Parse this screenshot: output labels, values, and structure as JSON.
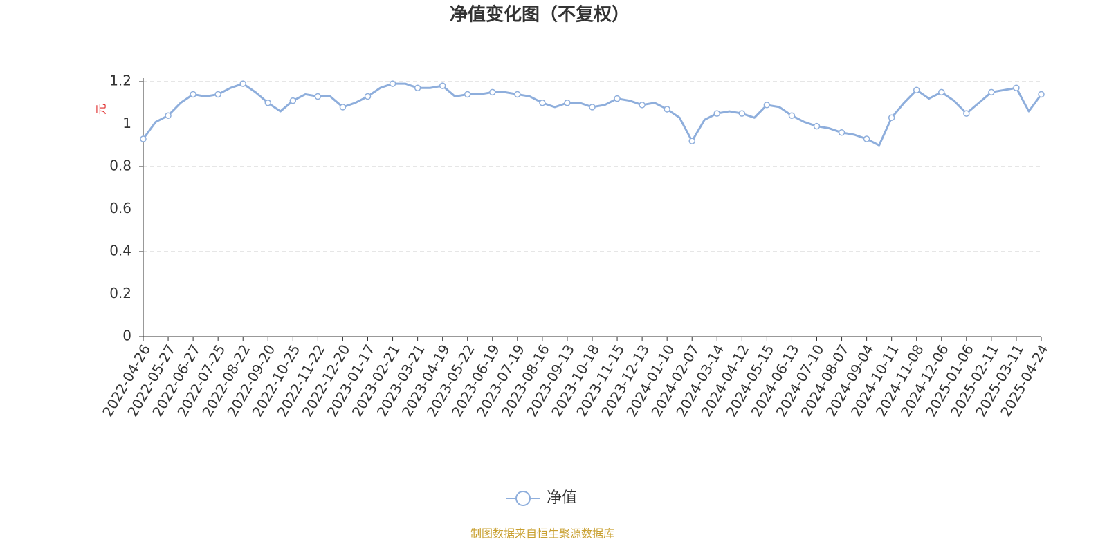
{
  "chart_data": {
    "type": "line",
    "title": "净值变化图（不复权）",
    "y_label": "元",
    "source": "制图数据来自恒生聚源数据库",
    "categories": [
      "2022-04-26",
      null,
      "2022-05-27",
      null,
      "2022-06-27",
      null,
      "2022-07-25",
      null,
      "2022-08-22",
      null,
      "2022-09-20",
      null,
      "2022-10-25",
      null,
      "2022-11-22",
      null,
      "2022-12-20",
      null,
      "2023-01-17",
      null,
      "2023-02-21",
      null,
      "2023-03-21",
      null,
      "2023-04-19",
      null,
      "2023-05-22",
      null,
      "2023-06-19",
      null,
      "2023-07-19",
      null,
      "2023-08-16",
      null,
      "2023-09-13",
      null,
      "2023-10-18",
      null,
      "2023-11-15",
      null,
      "2023-12-13",
      null,
      "2024-01-10",
      null,
      "2024-02-07",
      null,
      "2024-03-14",
      null,
      "2024-04-12",
      null,
      "2024-05-15",
      null,
      "2024-06-13",
      null,
      "2024-07-10",
      null,
      "2024-08-07",
      null,
      "2024-09-04",
      null,
      "2024-10-11",
      null,
      "2024-11-08",
      null,
      "2024-12-06",
      null,
      "2025-01-06",
      null,
      "2025-02-11",
      null,
      "2025-03-11",
      null,
      "2025-04-24"
    ],
    "series": [
      {
        "name": "净值",
        "color": "#8eaedc",
        "values": [
          0.93,
          1.01,
          1.04,
          1.1,
          1.14,
          1.13,
          1.14,
          1.17,
          1.19,
          1.15,
          1.1,
          1.06,
          1.11,
          1.14,
          1.13,
          1.13,
          1.08,
          1.1,
          1.13,
          1.17,
          1.19,
          1.19,
          1.17,
          1.17,
          1.18,
          1.13,
          1.14,
          1.14,
          1.15,
          1.15,
          1.14,
          1.13,
          1.1,
          1.08,
          1.1,
          1.1,
          1.08,
          1.09,
          1.12,
          1.11,
          1.09,
          1.1,
          1.07,
          1.03,
          0.92,
          1.02,
          1.05,
          1.06,
          1.05,
          1.03,
          1.09,
          1.08,
          1.04,
          1.01,
          0.99,
          0.98,
          0.96,
          0.95,
          0.93,
          0.9,
          1.03,
          1.1,
          1.16,
          1.12,
          1.15,
          1.11,
          1.05,
          1.1,
          1.15,
          1.16,
          1.17,
          1.06,
          1.14
        ]
      }
    ],
    "ylim": [
      0,
      1.2
    ],
    "yticks": [
      0,
      0.2,
      0.4,
      0.6,
      0.8,
      1,
      1.2
    ],
    "grid": true
  }
}
